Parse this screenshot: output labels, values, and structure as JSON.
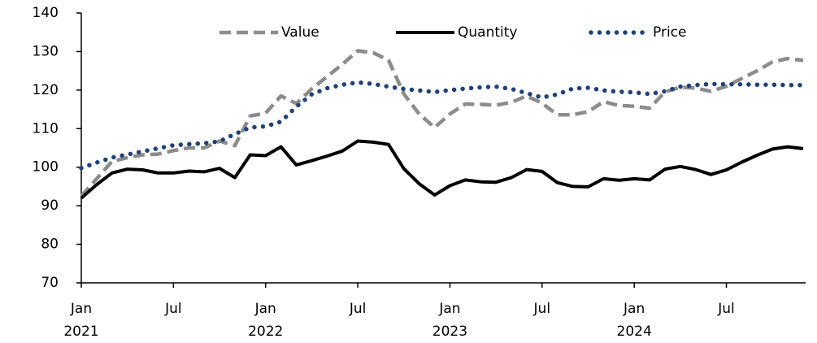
{
  "chart_data": {
    "type": "line",
    "categories": [
      "Jan 2021",
      null,
      null,
      null,
      null,
      null,
      "Jul",
      null,
      null,
      null,
      null,
      null,
      "Jan 2022",
      null,
      null,
      null,
      null,
      null,
      "Jul",
      null,
      null,
      null,
      null,
      null,
      "Jan 2023",
      null,
      null,
      null,
      null,
      null,
      "Jul",
      null,
      null,
      null,
      null,
      null,
      "Jan 2024",
      null,
      null,
      null,
      null,
      null,
      "Jul",
      null,
      null,
      null,
      null,
      null
    ],
    "series": [
      {
        "name": "Value",
        "color": "#8c8c8c",
        "style": "dashed",
        "values": [
          92.5,
          97,
          101.5,
          102.5,
          103.2,
          103.4,
          104.3,
          105,
          105,
          106.8,
          105.6,
          113.3,
          114,
          118.5,
          116.5,
          120.3,
          123.5,
          126.7,
          130.2,
          129.7,
          127.8,
          119,
          113.8,
          110.3,
          113.8,
          116.4,
          116.3,
          116.1,
          116.8,
          118.5,
          116.6,
          113.6,
          113.6,
          114.4,
          117,
          116,
          115.8,
          115.3,
          119.5,
          120.8,
          120.5,
          119.7,
          121,
          123,
          125,
          127.3,
          128.2,
          127.7
        ]
      },
      {
        "name": "Quantity",
        "color": "#000000",
        "style": "solid",
        "values": [
          92,
          95.5,
          98.5,
          99.5,
          99.3,
          98.5,
          98.5,
          99,
          98.8,
          99.7,
          97.3,
          103.2,
          103,
          105.3,
          100.6,
          101.7,
          102.9,
          104.2,
          106.8,
          106.5,
          105.9,
          99.6,
          95.7,
          92.8,
          95.2,
          96.7,
          96.2,
          96.1,
          97.3,
          99.4,
          98.9,
          96,
          95,
          94.9,
          97,
          96.6,
          97,
          96.7,
          99.5,
          100.2,
          99.4,
          98.1,
          99.3,
          101.3,
          103.1,
          104.7,
          105.3,
          104.8
        ]
      },
      {
        "name": "Price",
        "color": "#1f4178",
        "style": "dotted",
        "values": [
          99.8,
          101.2,
          102.5,
          103.3,
          104.1,
          104.9,
          105.7,
          106,
          106.2,
          106.7,
          108.6,
          110.3,
          110.6,
          111.8,
          115.7,
          118.9,
          120.5,
          121.4,
          122,
          121.6,
          120.9,
          120.3,
          119.9,
          119.5,
          120,
          120.4,
          120.7,
          120.9,
          120.3,
          119.2,
          118.1,
          118.9,
          120.4,
          120.6,
          119.9,
          119.6,
          119.4,
          119,
          119.7,
          120.9,
          121.3,
          121.6,
          121.5,
          121.5,
          121.4,
          121.4,
          121.3,
          121.3
        ]
      }
    ],
    "ylim": [
      70,
      140
    ],
    "yticks": [
      70,
      80,
      90,
      100,
      110,
      120,
      130,
      140
    ],
    "grid": false,
    "legend": "top"
  }
}
